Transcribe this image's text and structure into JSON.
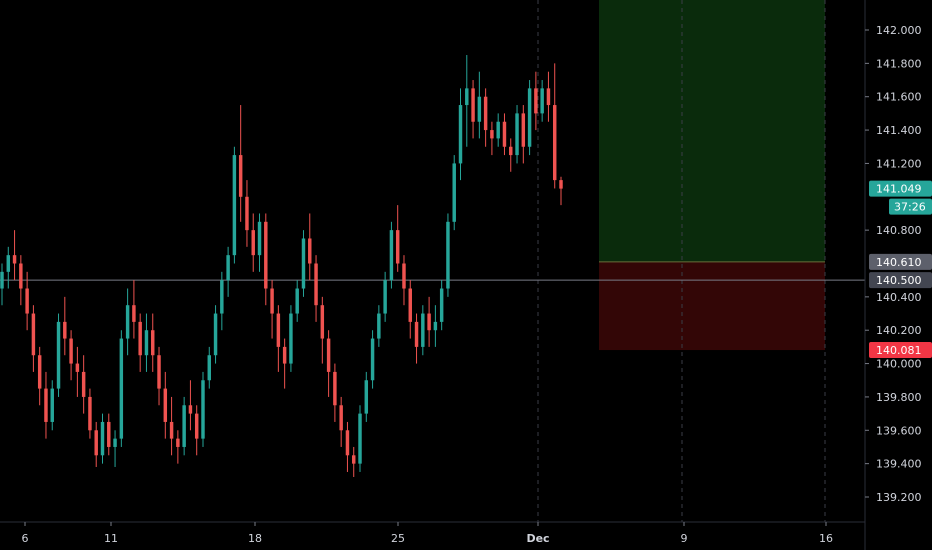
{
  "chart_data": {
    "type": "candlestick",
    "x_labels": [
      "6",
      "11",
      "18",
      "25",
      "Dec",
      "9",
      "16"
    ],
    "y_ticks": [
      "142.000",
      "141.800",
      "141.600",
      "141.400",
      "141.200",
      "140.800",
      "140.400",
      "140.200",
      "140.000",
      "139.800",
      "139.600",
      "139.400",
      "139.200"
    ],
    "ylim": [
      139.05,
      142.18
    ],
    "grid": false,
    "colors": {
      "background": "#000000",
      "up": "#26a69a",
      "down": "#ef5350",
      "profit_zone": "#0a2b0c",
      "loss_zone": "#330606",
      "crosshair": "#787b86"
    },
    "price_tags": {
      "current": {
        "value": 141.049,
        "label": "141.049",
        "color": "#26a69a"
      },
      "countdown": {
        "label": "37:26",
        "color": "#26a69a"
      },
      "entry": {
        "value": 140.61,
        "label": "140.610",
        "color": "#5d606b"
      },
      "crosshair": {
        "value": 140.5,
        "label": "140.500",
        "color": "#434651"
      },
      "stop": {
        "value": 140.081,
        "label": "140.081",
        "color": "#f23645"
      }
    },
    "position": {
      "type": "long",
      "entry": 140.61,
      "target": 142.18,
      "stop": 140.081
    },
    "ohlc": [
      [
        140.45,
        140.6,
        140.35,
        140.55
      ],
      [
        140.55,
        140.7,
        140.45,
        140.65
      ],
      [
        140.65,
        140.8,
        140.5,
        140.6
      ],
      [
        140.6,
        140.65,
        140.35,
        140.45
      ],
      [
        140.45,
        140.55,
        140.2,
        140.3
      ],
      [
        140.3,
        140.35,
        139.95,
        140.05
      ],
      [
        140.05,
        140.1,
        139.75,
        139.85
      ],
      [
        139.85,
        139.95,
        139.55,
        139.65
      ],
      [
        139.65,
        139.9,
        139.6,
        139.85
      ],
      [
        139.85,
        140.3,
        139.8,
        140.25
      ],
      [
        140.25,
        140.4,
        140.05,
        140.15
      ],
      [
        140.15,
        140.2,
        139.9,
        140.0
      ],
      [
        140.0,
        140.1,
        139.8,
        139.95
      ],
      [
        139.95,
        140.05,
        139.7,
        139.8
      ],
      [
        139.8,
        139.85,
        139.55,
        139.6
      ],
      [
        139.6,
        139.65,
        139.38,
        139.45
      ],
      [
        139.45,
        139.7,
        139.4,
        139.65
      ],
      [
        139.65,
        139.7,
        139.45,
        139.5
      ],
      [
        139.5,
        139.6,
        139.38,
        139.55
      ],
      [
        139.55,
        140.2,
        139.5,
        140.15
      ],
      [
        140.15,
        140.45,
        140.05,
        140.35
      ],
      [
        140.35,
        140.5,
        140.15,
        140.25
      ],
      [
        140.25,
        140.3,
        139.95,
        140.05
      ],
      [
        140.05,
        140.3,
        139.95,
        140.2
      ],
      [
        140.2,
        140.3,
        139.95,
        140.05
      ],
      [
        140.05,
        140.1,
        139.75,
        139.85
      ],
      [
        139.85,
        139.95,
        139.55,
        139.65
      ],
      [
        139.65,
        139.8,
        139.45,
        139.55
      ],
      [
        139.55,
        139.6,
        139.4,
        139.5
      ],
      [
        139.5,
        139.8,
        139.45,
        139.75
      ],
      [
        139.75,
        139.9,
        139.6,
        139.7
      ],
      [
        139.7,
        139.75,
        139.45,
        139.55
      ],
      [
        139.55,
        139.95,
        139.5,
        139.9
      ],
      [
        139.9,
        140.1,
        139.85,
        140.05
      ],
      [
        140.05,
        140.35,
        140.0,
        140.3
      ],
      [
        140.3,
        140.55,
        140.2,
        140.5
      ],
      [
        140.5,
        140.7,
        140.4,
        140.65
      ],
      [
        140.65,
        141.3,
        140.6,
        141.25
      ],
      [
        141.25,
        141.55,
        140.85,
        141.0
      ],
      [
        141.0,
        141.1,
        140.7,
        140.8
      ],
      [
        140.8,
        140.9,
        140.55,
        140.65
      ],
      [
        140.65,
        140.9,
        140.55,
        140.85
      ],
      [
        140.85,
        140.9,
        140.35,
        140.45
      ],
      [
        140.45,
        140.5,
        140.15,
        140.3
      ],
      [
        140.3,
        140.35,
        139.95,
        140.1
      ],
      [
        140.1,
        140.15,
        139.85,
        140.0
      ],
      [
        140.0,
        140.35,
        139.95,
        140.3
      ],
      [
        140.3,
        140.5,
        140.25,
        140.45
      ],
      [
        140.45,
        140.8,
        140.4,
        140.75
      ],
      [
        140.75,
        140.9,
        140.5,
        140.6
      ],
      [
        140.6,
        140.65,
        140.25,
        140.35
      ],
      [
        140.35,
        140.4,
        140.0,
        140.15
      ],
      [
        140.15,
        140.2,
        139.8,
        139.95
      ],
      [
        139.95,
        140.0,
        139.65,
        139.75
      ],
      [
        139.75,
        139.8,
        139.5,
        139.6
      ],
      [
        139.6,
        139.65,
        139.35,
        139.45
      ],
      [
        139.45,
        139.5,
        139.32,
        139.4
      ],
      [
        139.4,
        139.75,
        139.35,
        139.7
      ],
      [
        139.7,
        139.95,
        139.65,
        139.9
      ],
      [
        139.9,
        140.2,
        139.85,
        140.15
      ],
      [
        140.15,
        140.35,
        140.1,
        140.3
      ],
      [
        140.3,
        140.55,
        140.25,
        140.5
      ],
      [
        140.5,
        140.85,
        140.45,
        140.8
      ],
      [
        140.8,
        140.95,
        140.55,
        140.6
      ],
      [
        140.6,
        140.65,
        140.35,
        140.45
      ],
      [
        140.45,
        140.5,
        140.15,
        140.25
      ],
      [
        140.25,
        140.3,
        140.0,
        140.1
      ],
      [
        140.1,
        140.35,
        140.05,
        140.3
      ],
      [
        140.3,
        140.4,
        140.1,
        140.2
      ],
      [
        140.2,
        140.35,
        140.1,
        140.25
      ],
      [
        140.25,
        140.5,
        140.2,
        140.45
      ],
      [
        140.45,
        140.9,
        140.4,
        140.85
      ],
      [
        140.85,
        141.25,
        140.8,
        141.2
      ],
      [
        141.2,
        141.65,
        141.1,
        141.55
      ],
      [
        141.55,
        141.85,
        141.3,
        141.65
      ],
      [
        141.65,
        141.7,
        141.35,
        141.45
      ],
      [
        141.45,
        141.75,
        141.35,
        141.6
      ],
      [
        141.6,
        141.65,
        141.3,
        141.4
      ],
      [
        141.4,
        141.45,
        141.25,
        141.35
      ],
      [
        141.35,
        141.5,
        141.3,
        141.45
      ],
      [
        141.45,
        141.5,
        141.25,
        141.3
      ],
      [
        141.3,
        141.35,
        141.15,
        141.25
      ],
      [
        141.25,
        141.55,
        141.2,
        141.5
      ],
      [
        141.5,
        141.55,
        141.2,
        141.3
      ],
      [
        141.3,
        141.7,
        141.25,
        141.65
      ],
      [
        141.65,
        141.75,
        141.4,
        141.5
      ],
      [
        141.5,
        141.7,
        141.45,
        141.65
      ],
      [
        141.65,
        141.75,
        141.45,
        141.55
      ],
      [
        141.55,
        141.8,
        141.05,
        141.1
      ],
      [
        141.1,
        141.12,
        140.95,
        141.049
      ]
    ]
  }
}
